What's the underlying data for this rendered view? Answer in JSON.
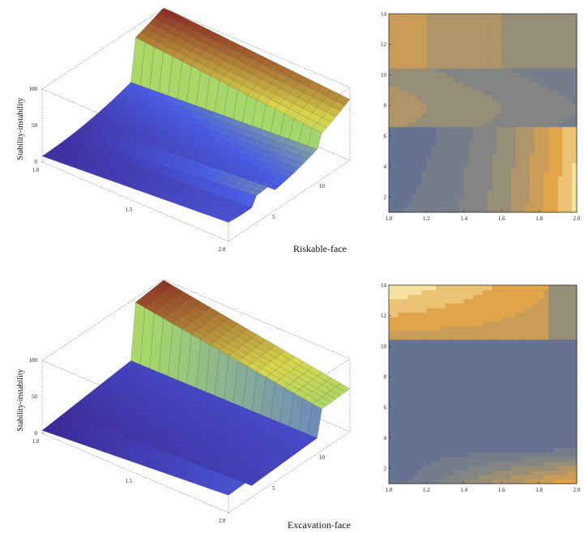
{
  "figure": {
    "caption_top": "Riskable-face",
    "caption_bottom": "Excavation-face"
  },
  "colors": {
    "surface_low": "#3a1b8a",
    "surface_mid": "#4a5ee8",
    "surface_green": "#a6d86a",
    "surface_yellow": "#d8d64a",
    "surface_high": "#8a2a20",
    "contour_low": "#4a5f9e",
    "contour_mid": "#8a8a80",
    "contour_high": "#e2a448",
    "contour_max": "#f6e2a0",
    "contour_line": "#3a3a3a"
  },
  "chart_data": [
    {
      "type": "surface3d",
      "zlabel": "Stability-instability",
      "x_ticks": [
        "1.0",
        "1.5",
        "2.0"
      ],
      "y_ticks": [
        "5",
        "10"
      ],
      "z_ticks": [
        "0",
        "50",
        "100"
      ],
      "xlim": [
        1.0,
        2.0
      ],
      "ylim": [
        1,
        14
      ],
      "zlim": [
        0,
        100
      ],
      "caption": "Riskable-face"
    },
    {
      "type": "heatmap",
      "x_ticks": [
        "1.0",
        "1.2",
        "1.4",
        "1.6",
        "1.8",
        "2.0"
      ],
      "y_ticks": [
        "2",
        "4",
        "6",
        "8",
        "10",
        "12",
        "14"
      ],
      "xlim": [
        1.0,
        2.0
      ],
      "ylim": [
        1,
        14
      ],
      "grid": false
    },
    {
      "type": "surface3d",
      "zlabel": "Stability-instability",
      "x_ticks": [
        "1.0",
        "1.5",
        "2.0"
      ],
      "y_ticks": [
        "5",
        "10"
      ],
      "z_ticks": [
        "0",
        "50",
        "100"
      ],
      "xlim": [
        1.0,
        2.0
      ],
      "ylim": [
        1,
        14
      ],
      "zlim": [
        0,
        100
      ],
      "caption": "Excavation-face"
    },
    {
      "type": "heatmap",
      "x_ticks": [
        "1.0",
        "1.2",
        "1.4",
        "1.6",
        "1.8",
        "2.0"
      ],
      "y_ticks": [
        "2",
        "4",
        "6",
        "8",
        "10",
        "12",
        "14"
      ],
      "xlim": [
        1.0,
        2.0
      ],
      "ylim": [
        1,
        14
      ],
      "grid": false
    }
  ]
}
